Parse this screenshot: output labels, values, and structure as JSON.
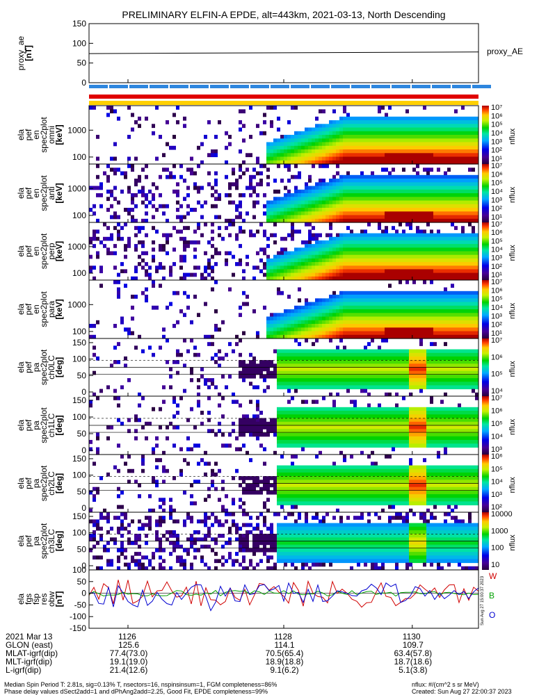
{
  "chart_data": {
    "type": "heatmap",
    "title": "PRELIMINARY ELFIN-A EPDE, alt=443km, 2021-03-13, North Descending",
    "panels": [
      {
        "ylabel": [
          "proxy_ae",
          "[nT]"
        ],
        "type": "line",
        "ylim": [
          0,
          150
        ],
        "yticks": [
          "150",
          "100",
          "50",
          "0"
        ],
        "series": [
          {
            "name": "proxy_AE",
            "x": [
              0,
              1
            ],
            "values": [
              74,
              78
            ]
          }
        ]
      },
      {
        "ylabel": [
          "ela",
          "pef",
          "en",
          "spec2plot",
          "omni",
          "[keV]"
        ],
        "yticks": [
          "1000",
          "100"
        ],
        "colorbar": {
          "label": "nflux",
          "ticks": [
            "10⁷",
            "10⁶",
            "10⁵",
            "10⁴",
            "10³",
            "10²",
            "10¹"
          ]
        }
      },
      {
        "ylabel": [
          "ela",
          "pef",
          "en",
          "spec2plot",
          "anti",
          "[keV]"
        ],
        "yticks": [
          "1000",
          "100"
        ],
        "colorbar": {
          "label": "nflux",
          "ticks": [
            "10⁷",
            "10⁶",
            "10⁵",
            "10⁴",
            "10³",
            "10²",
            "10¹"
          ]
        }
      },
      {
        "ylabel": [
          "ela",
          "pef",
          "en",
          "spec2plot",
          "perp",
          "[keV]"
        ],
        "yticks": [
          "1000",
          "100"
        ],
        "colorbar": {
          "label": "nflux",
          "ticks": [
            "10⁷",
            "10⁶",
            "10⁵",
            "10⁴",
            "10³",
            "10²",
            "10¹"
          ]
        }
      },
      {
        "ylabel": [
          "ela",
          "pef",
          "en",
          "spec2plot",
          "para",
          "[keV]"
        ],
        "yticks": [
          "1000",
          "100"
        ],
        "colorbar": {
          "label": "nflux",
          "ticks": [
            "10⁷",
            "10⁶",
            "10⁵",
            "10⁴",
            "10³",
            "10²",
            "10¹"
          ]
        }
      },
      {
        "ylabel": [
          "ela",
          "pef",
          "pa",
          "spec2plot",
          "ch0LC",
          "[deg]"
        ],
        "yticks": [
          "150",
          "100",
          "50",
          "0"
        ],
        "colorbar": {
          "label": "nflux",
          "ticks": [
            "10⁷",
            "10⁶",
            "10⁵",
            "10⁴"
          ]
        }
      },
      {
        "ylabel": [
          "ela",
          "pef",
          "pa",
          "spec2plot",
          "ch1LC",
          "[deg]"
        ],
        "yticks": [
          "150",
          "100",
          "50",
          "0"
        ],
        "colorbar": {
          "label": "nflux",
          "ticks": [
            "10⁷",
            "10⁶",
            "10⁵",
            "10⁴",
            "10³"
          ]
        }
      },
      {
        "ylabel": [
          "ela",
          "pef",
          "pa",
          "spec2plot",
          "ch2LC",
          "[deg]"
        ],
        "yticks": [
          "150",
          "100",
          "50",
          "0"
        ],
        "colorbar": {
          "label": "nflux",
          "ticks": [
            "10⁶",
            "10⁵",
            "10⁴",
            "10³",
            "10²"
          ]
        }
      },
      {
        "ylabel": [
          "ela",
          "pef",
          "pa",
          "spec2plot",
          "ch3LC",
          "[deg]"
        ],
        "yticks": [
          "150",
          "100",
          "50",
          "0"
        ],
        "colorbar": {
          "label": "nflux",
          "ticks": [
            "10000",
            "1000",
            "100",
            "10"
          ]
        }
      },
      {
        "ylabel": [
          "ela",
          "fgs",
          "fsp",
          "res",
          "obw",
          "[nT]"
        ],
        "type": "line",
        "ylim": [
          -150,
          100
        ],
        "yticks": [
          "100",
          "50",
          "0",
          "-50",
          "-100",
          "-150"
        ],
        "legend": [
          "W",
          "B",
          "O"
        ],
        "legend_colors": [
          "#d00000",
          "#00a000",
          "#0000d0"
        ]
      }
    ],
    "x_ticks": [
      "1126",
      "1128",
      "1130"
    ],
    "x_tick_fractions": [
      0.1,
      0.5,
      0.83
    ]
  },
  "footer": {
    "date_label": "2021 Mar 13",
    "rows": [
      {
        "label": "GLON (east)",
        "values": [
          "125.6",
          "114.1",
          "109.7"
        ]
      },
      {
        "label": "MLAT-igrf(dip)",
        "values": [
          "77.4(73.0)",
          "70.5(65.4)",
          "63.4(57.8)"
        ]
      },
      {
        "label": "MLT-igrf(dip)",
        "values": [
          "19.1(19.0)",
          "18.9(18.8)",
          "18.7(18.6)"
        ]
      },
      {
        "label": "L-igrf(dip)",
        "values": [
          "21.4(12.6)",
          "9.1(6.2)",
          "5.1(3.8)"
        ]
      }
    ],
    "notes_left": [
      "Median Spin Period T: 2.81s, sig=0.13% T, nsectors=16, nspinsinsum=1, FGM completeness=86%",
      "Phase delay values dSect2add=1 and dPhAng2add=2.25, Good Fit, EPDE completeness=99%"
    ],
    "notes_right": [
      "nflux: #/(cm^2 s sr MeV)",
      "Created: Sun Aug 27 22:00:37 2023"
    ],
    "side_stamp": "Sun Aug 27 15:00:37 2023"
  },
  "colors": {
    "blue_bar": "#2e86de",
    "red_bar": "#e00000",
    "yellow_bar": "#ffd000"
  }
}
